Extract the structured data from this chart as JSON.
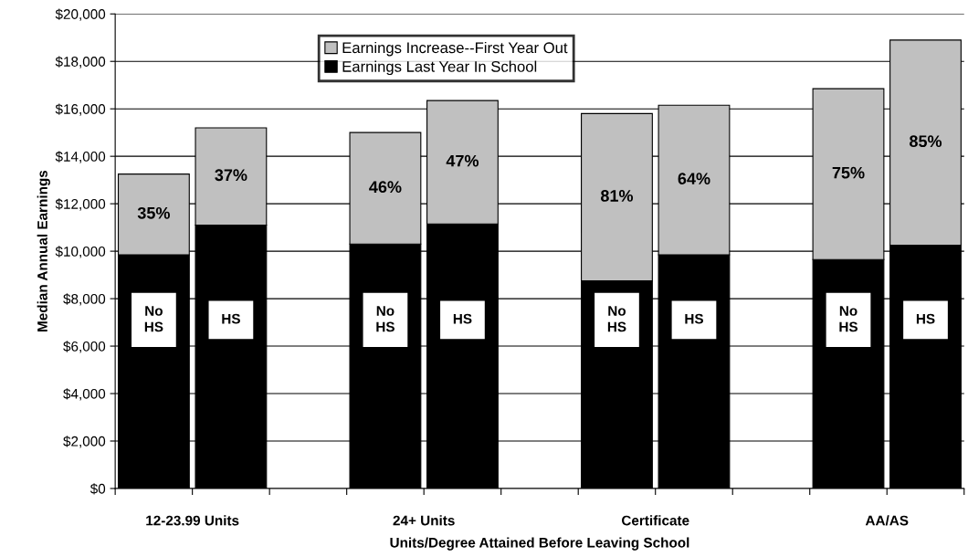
{
  "chart_data": {
    "type": "bar",
    "stacked": true,
    "xlabel": "Units/Degree Attained Before Leaving School",
    "ylabel": "Median Annual Earnings",
    "categories": [
      "No\nHS",
      "HS",
      "No\nHS",
      "HS",
      "No\nHS",
      "HS",
      "No\nHS",
      "HS"
    ],
    "annotations": [
      "35%",
      "37%",
      "46%",
      "47%",
      "81%",
      "64%",
      "75%",
      "85%",
      "12-23.99 Units",
      "24+ Units",
      "Certificate",
      "AA/AS"
    ],
    "series": [
      {
        "name": "Earnings Last Year In School",
        "color": "#000000",
        "values": [
          9850,
          11100,
          10300,
          11150,
          8750,
          9850,
          9650,
          10250
        ]
      },
      {
        "name": "Earnings Increase--First Year Out",
        "color": "#c0c0c0",
        "values": [
          3400,
          4100,
          4700,
          5200,
          7050,
          6300,
          7200,
          8650
        ]
      }
    ],
    "ylim": [
      0,
      20000
    ],
    "yticks": [
      {
        "value": 0,
        "label": "$0"
      },
      {
        "value": 2000,
        "label": "$2,000"
      },
      {
        "value": 4000,
        "label": "$4,000"
      },
      {
        "value": 6000,
        "label": "$6,000"
      },
      {
        "value": 8000,
        "label": "$8,000"
      },
      {
        "value": 10000,
        "label": "$10,000"
      },
      {
        "value": 12000,
        "label": "$12,000"
      },
      {
        "value": 14000,
        "label": "$14,000"
      },
      {
        "value": 16000,
        "label": "$16,000"
      },
      {
        "value": 18000,
        "label": "$18,000"
      },
      {
        "value": 20000,
        "label": "$20,000"
      }
    ],
    "grid": "y",
    "legend": "top"
  }
}
